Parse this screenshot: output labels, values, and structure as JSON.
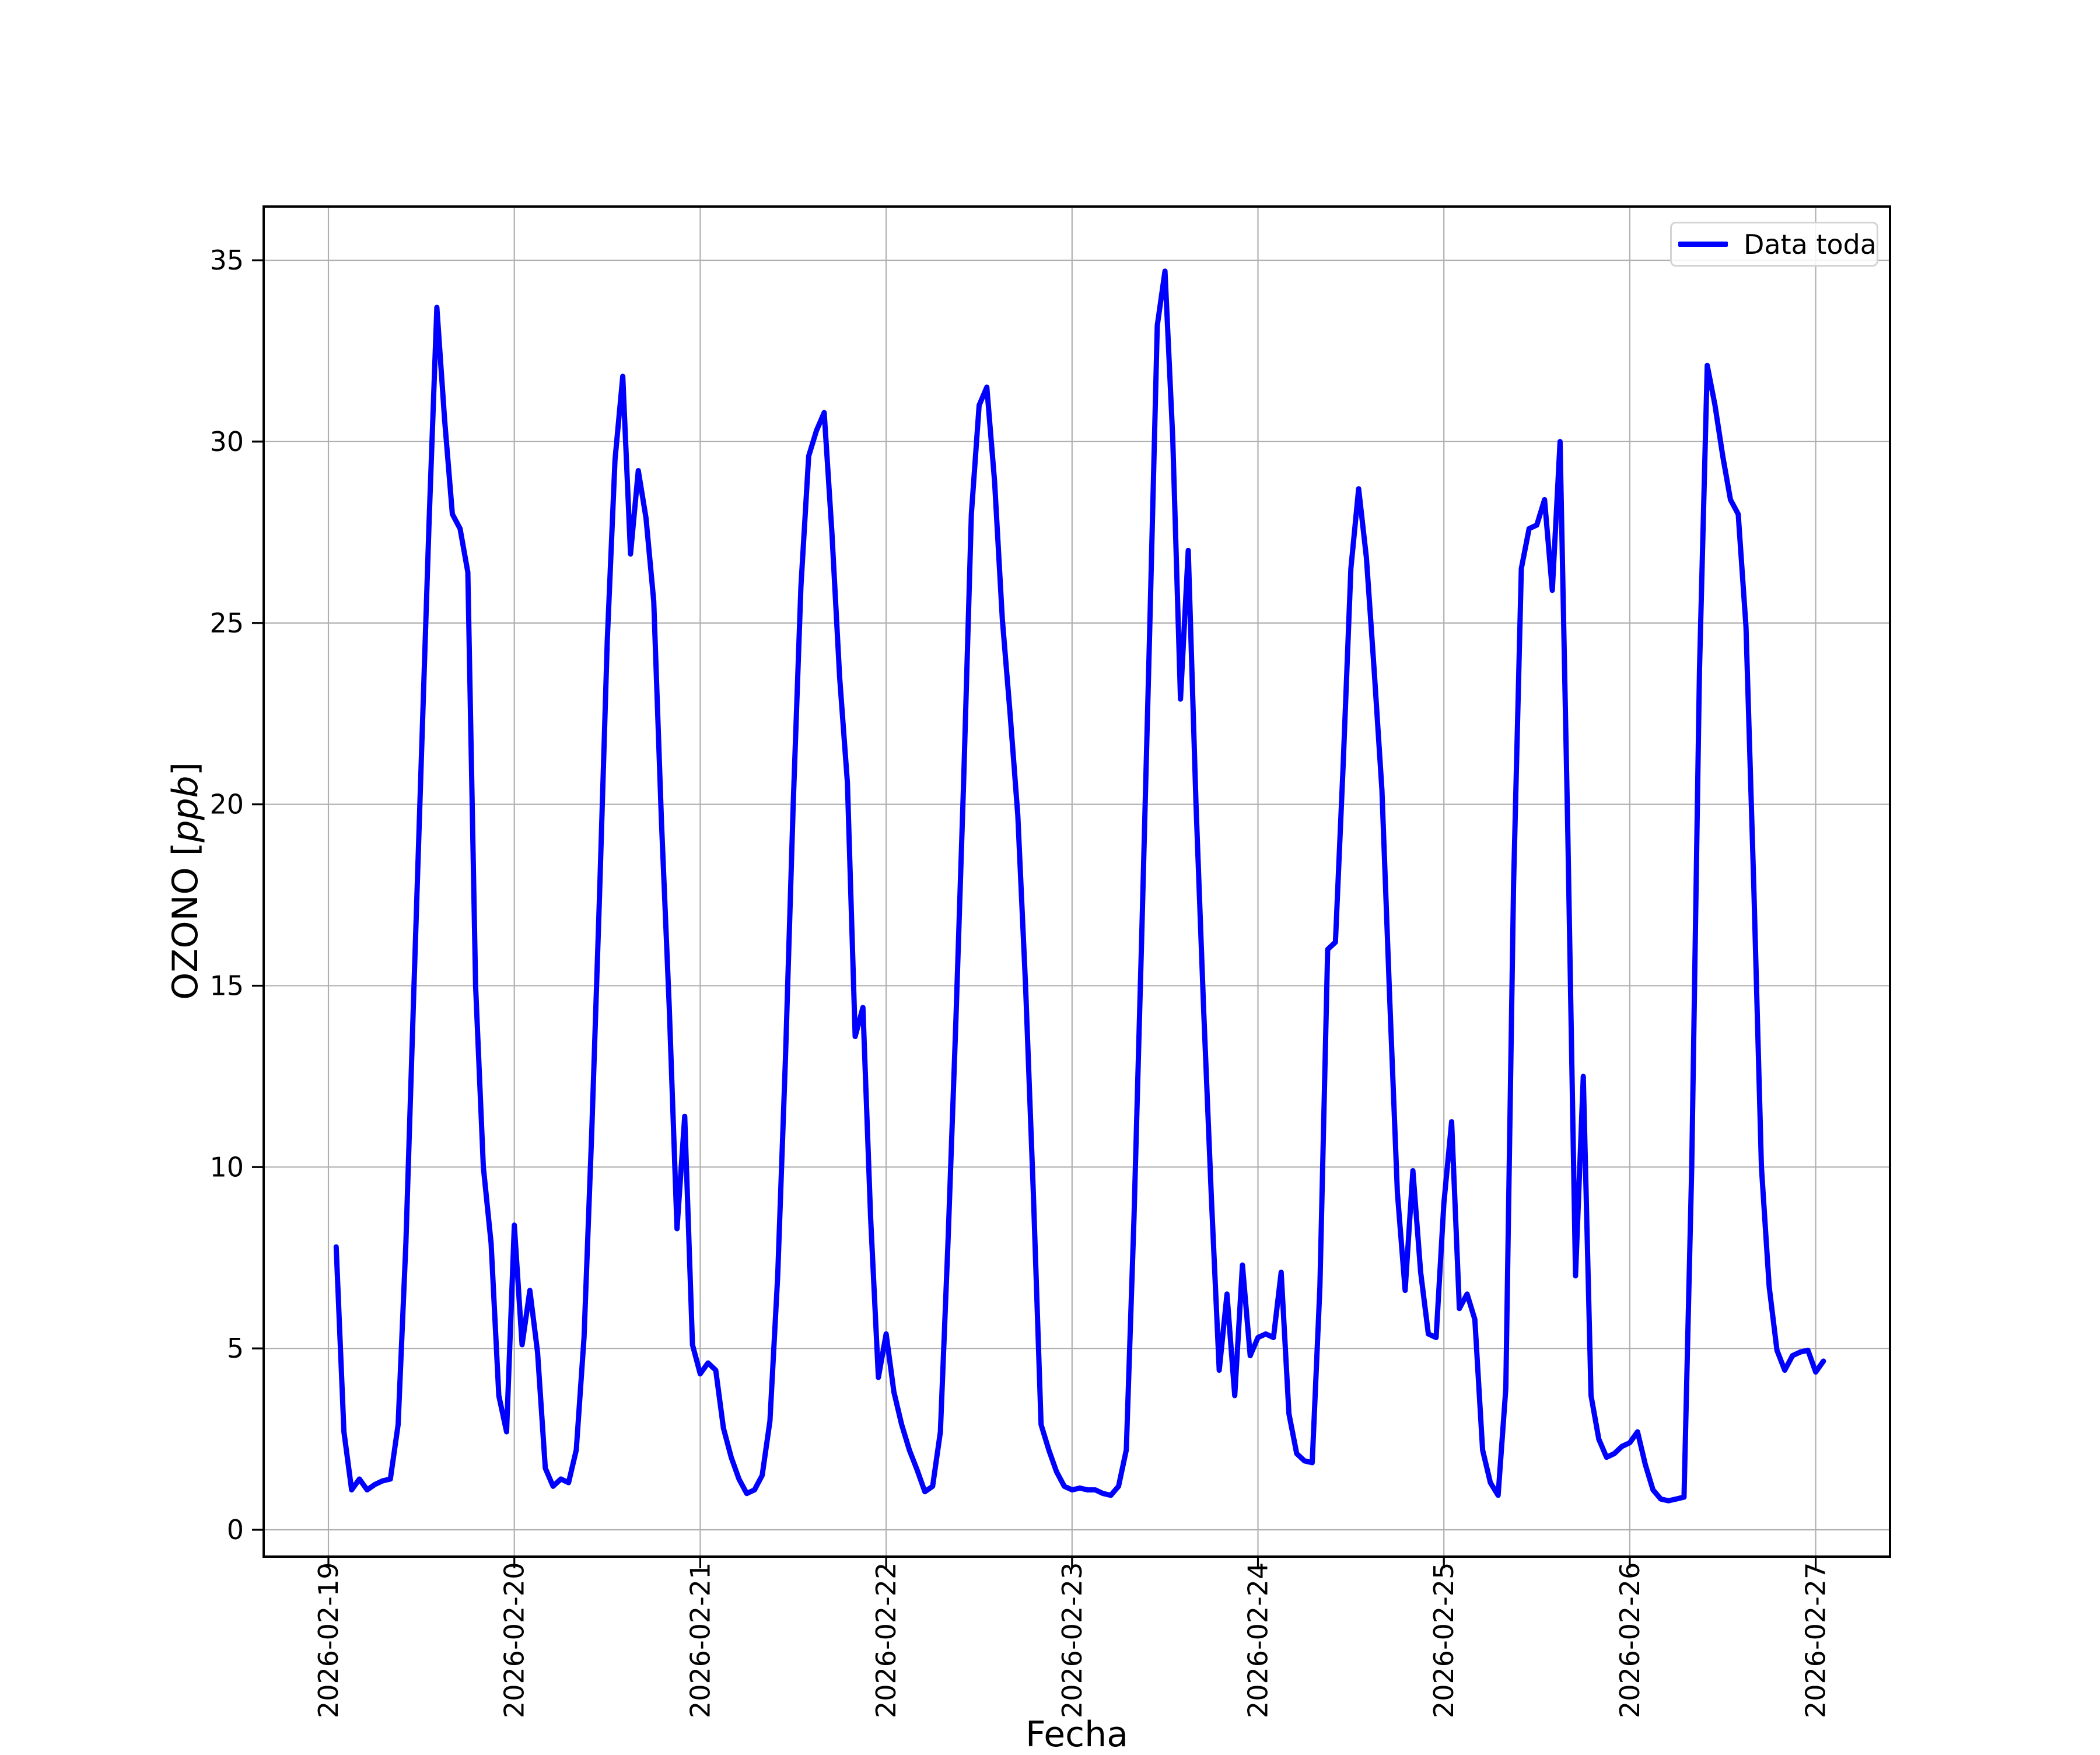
{
  "chart_data": {
    "type": "line",
    "title": "",
    "xlabel": "Fecha",
    "ylabel": "OZONO [ppb]",
    "ylabel_parts": {
      "prefix": "OZONO [",
      "math": "ppb",
      "suffix": "]"
    },
    "legend_label": "Data toda",
    "legend_position": "upper right",
    "line_color": "#0000ff",
    "grid": true,
    "grid_color": "#b0b0b0",
    "spine_color": "#000000",
    "x_tick_labels": [
      "2026-02-19",
      "2026-02-20",
      "2026-02-21",
      "2026-02-22",
      "2026-02-23",
      "2026-02-24",
      "2026-02-25",
      "2026-02-26",
      "2026-02-27"
    ],
    "y_ticks": [
      0,
      5,
      10,
      15,
      20,
      25,
      30,
      35
    ],
    "ylim": [
      -0.75,
      36.5
    ],
    "series": [
      {
        "name": "Data toda",
        "start": "2026-02-19 01:00",
        "interval_hours": 1,
        "values": [
          7.8,
          2.7,
          1.1,
          1.4,
          1.1,
          1.25,
          1.35,
          1.4,
          2.9,
          7.9,
          14.7,
          21.3,
          27.8,
          33.7,
          30.6,
          28.0,
          27.6,
          26.4,
          15.0,
          10.0,
          7.9,
          3.7,
          2.7,
          8.4,
          5.1,
          6.6,
          4.9,
          1.7,
          1.2,
          1.4,
          1.3,
          2.2,
          5.3,
          11.0,
          17.5,
          24.5,
          29.5,
          31.8,
          26.9,
          29.2,
          27.9,
          25.6,
          19.5,
          14.4,
          8.3,
          11.4,
          5.1,
          4.3,
          4.6,
          4.4,
          2.8,
          2.0,
          1.4,
          1.0,
          1.1,
          1.5,
          3.0,
          7.0,
          13.0,
          20.0,
          26.0,
          29.6,
          30.3,
          30.8,
          27.5,
          23.5,
          20.6,
          13.6,
          14.4,
          8.6,
          4.2,
          5.4,
          3.8,
          2.9,
          2.2,
          1.65,
          1.05,
          1.2,
          2.7,
          8.0,
          14.0,
          20.6,
          28.0,
          31.0,
          31.5,
          28.9,
          25.1,
          22.5,
          19.7,
          15.0,
          9.3,
          2.9,
          2.2,
          1.6,
          1.2,
          1.1,
          1.15,
          1.1,
          1.1,
          1.0,
          0.95,
          1.2,
          2.2,
          8.6,
          16.4,
          24.6,
          33.2,
          34.7,
          30.1,
          22.9,
          27.0,
          20.0,
          14.3,
          9.1,
          4.4,
          6.5,
          3.7,
          7.3,
          4.8,
          5.3,
          5.4,
          5.3,
          7.1,
          3.2,
          2.1,
          1.9,
          1.85,
          6.7,
          16.0,
          16.2,
          21.1,
          26.5,
          28.7,
          26.8,
          23.7,
          20.4,
          14.7,
          9.3,
          6.6,
          9.9,
          7.1,
          5.4,
          5.3,
          9.0,
          11.25,
          6.1,
          6.5,
          5.8,
          2.2,
          1.3,
          0.95,
          3.9,
          17.8,
          26.5,
          27.6,
          27.7,
          28.4,
          25.9,
          30.0,
          19.2,
          7.0,
          12.5,
          3.7,
          2.5,
          2.0,
          2.1,
          2.3,
          2.4,
          2.7,
          1.8,
          1.1,
          0.85,
          0.8,
          0.85,
          0.9,
          10.0,
          23.7,
          32.1,
          31.0,
          29.6,
          28.4,
          28.0,
          24.9,
          17.8,
          10.0,
          6.7,
          4.95,
          4.4,
          4.8,
          4.9,
          4.95,
          4.35,
          4.65
        ]
      }
    ]
  }
}
